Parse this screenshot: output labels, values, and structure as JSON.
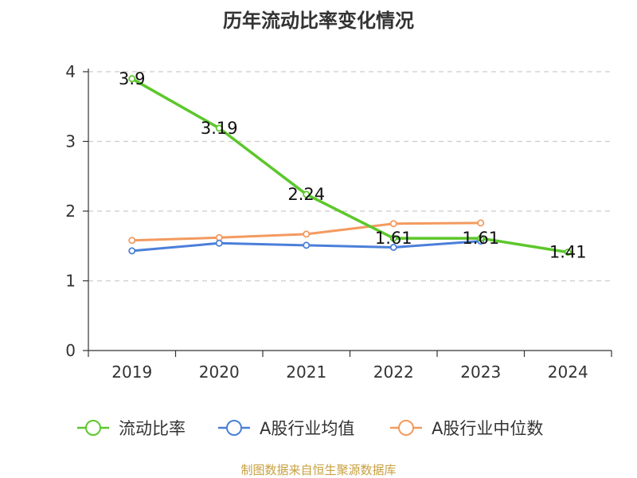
{
  "chart_data": {
    "type": "line",
    "title": "历年流动比率变化情况",
    "categories": [
      "2019",
      "2020",
      "2021",
      "2022",
      "2023",
      "2024"
    ],
    "ylim": [
      0,
      4
    ],
    "yticks": [
      0,
      1,
      2,
      3,
      4
    ],
    "grid": true,
    "series": [
      {
        "name": "流动比率",
        "color": "#5cc72c",
        "values": [
          3.9,
          3.19,
          2.24,
          1.61,
          1.61,
          1.41
        ],
        "data_labels": [
          "3.9",
          "3.19",
          "2.24",
          "1.61",
          "1.61",
          "1.41"
        ]
      },
      {
        "name": "A股行业均值",
        "color": "#4b7fd9",
        "values": [
          1.43,
          1.54,
          1.51,
          1.48,
          1.57,
          null
        ]
      },
      {
        "name": "A股行业中位数",
        "color": "#f39a5f",
        "values": [
          1.58,
          1.62,
          1.67,
          1.82,
          1.83,
          null
        ]
      }
    ],
    "legend_position": "bottom",
    "source": "制图数据来自恒生聚源数据库"
  }
}
